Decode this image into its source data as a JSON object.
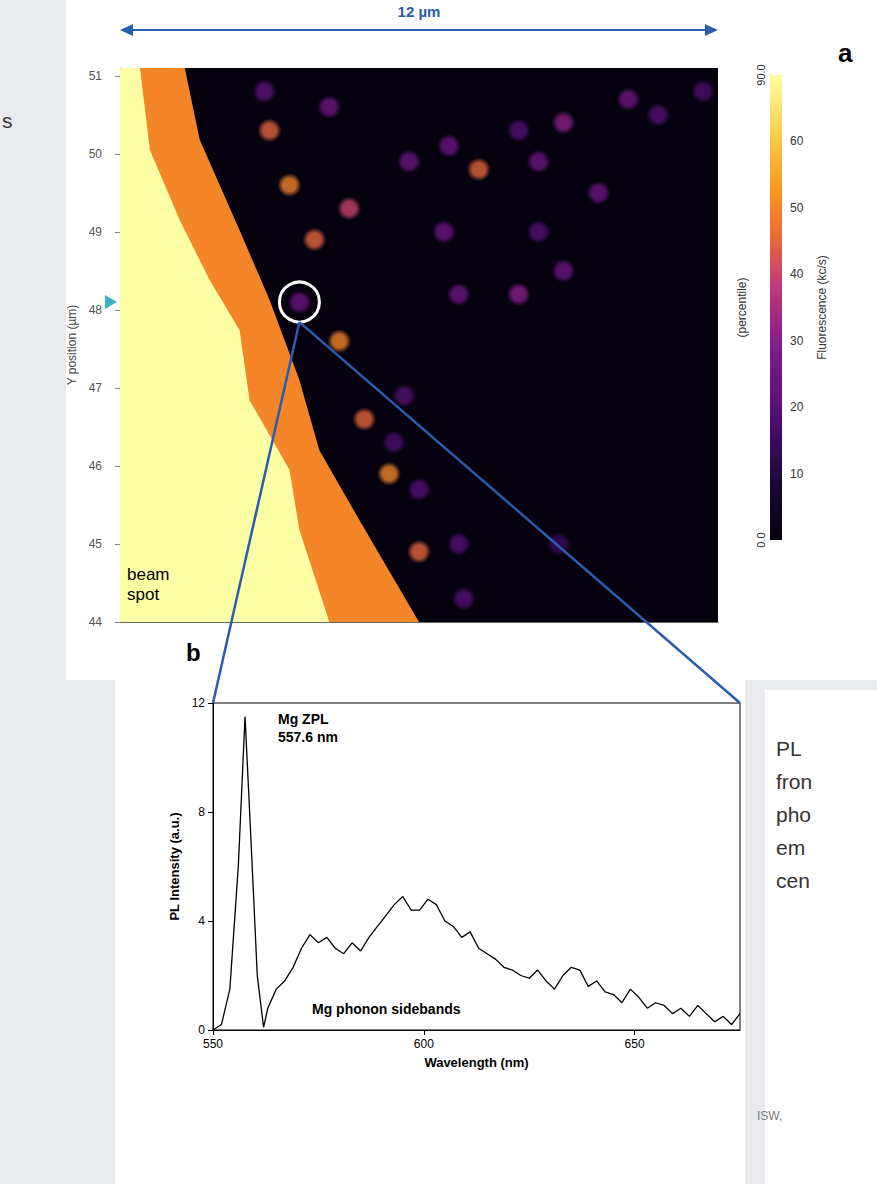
{
  "chart_data": [
    {
      "type": "scatter",
      "panel": "a",
      "scale_bar": "12 µm",
      "ylabel": "Y position (µm)",
      "x": [
        2.9,
        4.2,
        5.8,
        6.6,
        7.2,
        8.0,
        8.4,
        8.9,
        10.2,
        10.8,
        11.7,
        4.6,
        6.5,
        8.4,
        9.6,
        3.6,
        6.8,
        8.0,
        8.9,
        5.7,
        6.0,
        6.8,
        5.5,
        8.8,
        6.9,
        3.0,
        3.4,
        3.9,
        4.4,
        4.9,
        5.4,
        6.0
      ],
      "y": [
        50.8,
        50.6,
        49.9,
        50.1,
        49.8,
        50.3,
        49.9,
        50.4,
        50.7,
        50.5,
        50.8,
        49.3,
        49.0,
        49.0,
        49.5,
        48.1,
        48.2,
        48.2,
        48.5,
        46.9,
        45.7,
        45.0,
        46.3,
        45.0,
        44.3,
        50.3,
        49.6,
        48.9,
        47.6,
        46.6,
        45.9,
        44.9
      ],
      "fluorescence": [
        22,
        25,
        25,
        25,
        45,
        20,
        25,
        30,
        25,
        20,
        18,
        40,
        25,
        20,
        25,
        25,
        25,
        30,
        25,
        20,
        20,
        20,
        18,
        15,
        20,
        45,
        50,
        45,
        50,
        45,
        50,
        45
      ],
      "xlim": [
        0,
        12
      ],
      "ylim": [
        44,
        51.1
      ],
      "yticks": [
        44,
        45,
        46,
        47,
        48,
        49,
        50,
        51
      ],
      "tick_labels": "y",
      "grid": false,
      "circled": [
        3.6,
        48.1
      ],
      "beam_spot": {
        "label": "beam spot",
        "regions": [
          {
            "value": 50,
            "outline": [
              [
                0,
                51.1
              ],
              [
                1.3,
                51.1
              ],
              [
                1.6,
                50.18
              ],
              [
                2.4,
                49.02
              ],
              [
                3.0,
                48.13
              ],
              [
                3.6,
                47.1
              ],
              [
                4.0,
                46.2
              ],
              [
                4.8,
                45.31
              ],
              [
                6.0,
                44
              ],
              [
                0,
                44
              ]
            ]
          },
          {
            "value": 70,
            "outline": [
              [
                0,
                51.1
              ],
              [
                0.4,
                51.1
              ],
              [
                0.6,
                50.05
              ],
              [
                1.2,
                49.15
              ],
              [
                1.8,
                48.38
              ],
              [
                2.4,
                47.74
              ],
              [
                2.6,
                46.84
              ],
              [
                3.4,
                45.95
              ],
              [
                3.6,
                45.18
              ],
              [
                4.2,
                44
              ],
              [
                0,
                44
              ]
            ]
          }
        ]
      },
      "colorbar": {
        "label": "Fluorescence (kc/s)",
        "range": [
          0,
          70
        ],
        "ticks": [
          10,
          20,
          30,
          40,
          50,
          60
        ],
        "percentile_label": "(percentile)",
        "percentile_range": [
          0,
          90
        ],
        "percentile_ticks": [
          {
            "value": 0,
            "label": "0.0"
          },
          {
            "value": 90,
            "label": "90.0"
          }
        ]
      }
    },
    {
      "type": "line",
      "panel": "b",
      "xlabel": "Wavelength (nm)",
      "ylabel": "PL Intensity (a.u.)",
      "color": "#000000",
      "x": [
        550,
        552,
        554,
        556,
        557.6,
        559,
        560.5,
        562,
        563,
        565,
        567,
        569,
        571,
        573,
        575,
        577,
        579,
        581,
        583,
        585,
        587,
        589,
        591,
        593,
        595,
        597,
        599,
        601,
        603,
        605,
        607,
        609,
        611,
        613,
        615,
        617,
        619,
        621,
        623,
        625,
        627,
        629,
        631,
        633,
        635,
        637,
        639,
        641,
        643,
        645,
        647,
        649,
        651,
        653,
        655,
        657,
        659,
        661,
        663,
        665,
        667,
        669,
        671,
        673,
        675
      ],
      "values": [
        0,
        0.2,
        1.5,
        6,
        11.5,
        7,
        2,
        0.1,
        0.8,
        1.5,
        1.8,
        2.3,
        3.0,
        3.5,
        3.2,
        3.4,
        3.0,
        2.8,
        3.2,
        2.9,
        3.4,
        3.8,
        4.2,
        4.6,
        4.9,
        4.4,
        4.4,
        4.8,
        4.6,
        4.0,
        3.8,
        3.4,
        3.6,
        3.0,
        2.8,
        2.6,
        2.3,
        2.2,
        2.0,
        1.9,
        2.2,
        1.8,
        1.5,
        2.0,
        2.3,
        2.2,
        1.6,
        1.8,
        1.4,
        1.3,
        1.0,
        1.5,
        1.2,
        0.8,
        1.0,
        0.9,
        0.6,
        0.8,
        0.5,
        0.9,
        0.6,
        0.3,
        0.5,
        0.2,
        0.6
      ],
      "xlim": [
        550,
        675
      ],
      "xticks": [
        550,
        600,
        650
      ],
      "ylim": [
        0,
        12
      ],
      "yticks": [
        0,
        4,
        8,
        12
      ],
      "grid": false,
      "annotations": [
        "Mg ZPL",
        "557.6 nm",
        "Mg phonon sidebands"
      ]
    }
  ],
  "slide_text": {
    "left": "s",
    "right": [
      "PL",
      "fron",
      "pho",
      "em",
      "cen"
    ],
    "footer": "ISW,"
  }
}
